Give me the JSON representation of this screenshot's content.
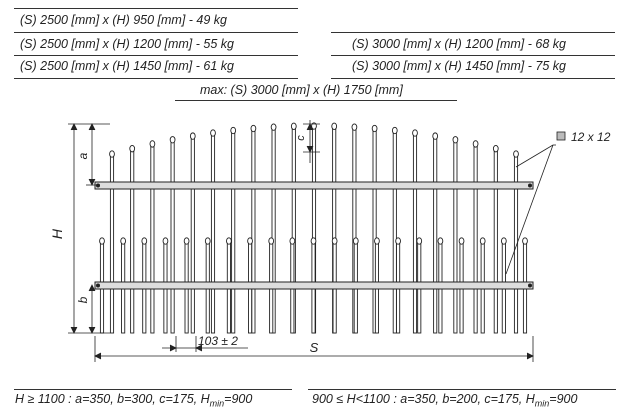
{
  "specs_left": [
    "(S) 2500 [mm] x (H) 950 [mm]   -  49 kg",
    "(S) 2500 [mm] x (H) 1200 [mm]  -  55 kg",
    "(S) 2500 [mm] x (H) 1450 [mm]  -  61 kg"
  ],
  "specs_right": [
    "(S) 3000 [mm] x (H) 1200 [mm]  -  68 kg",
    "(S) 3000 [mm] x (H) 1450 [mm]  -  75 kg"
  ],
  "max_spec": "max: (S) 3000 [mm] x (H) 1750 [mm]",
  "diagram": {
    "bar_size_label": "12 x 12",
    "dim_a": "a",
    "dim_b": "b",
    "dim_c": "c",
    "dim_H": "H",
    "dim_S": "S",
    "spacing_label": "103 ± 2"
  },
  "footer_left": {
    "prefix": "H ≥ 1100 : a=350, b=300, c=175, H",
    "sub": "min",
    "suffix": "=900"
  },
  "footer_right": {
    "prefix": "900 ≤ H<1100 : a=350, b=200, c=175, H",
    "sub": "min",
    "suffix": "=900"
  }
}
